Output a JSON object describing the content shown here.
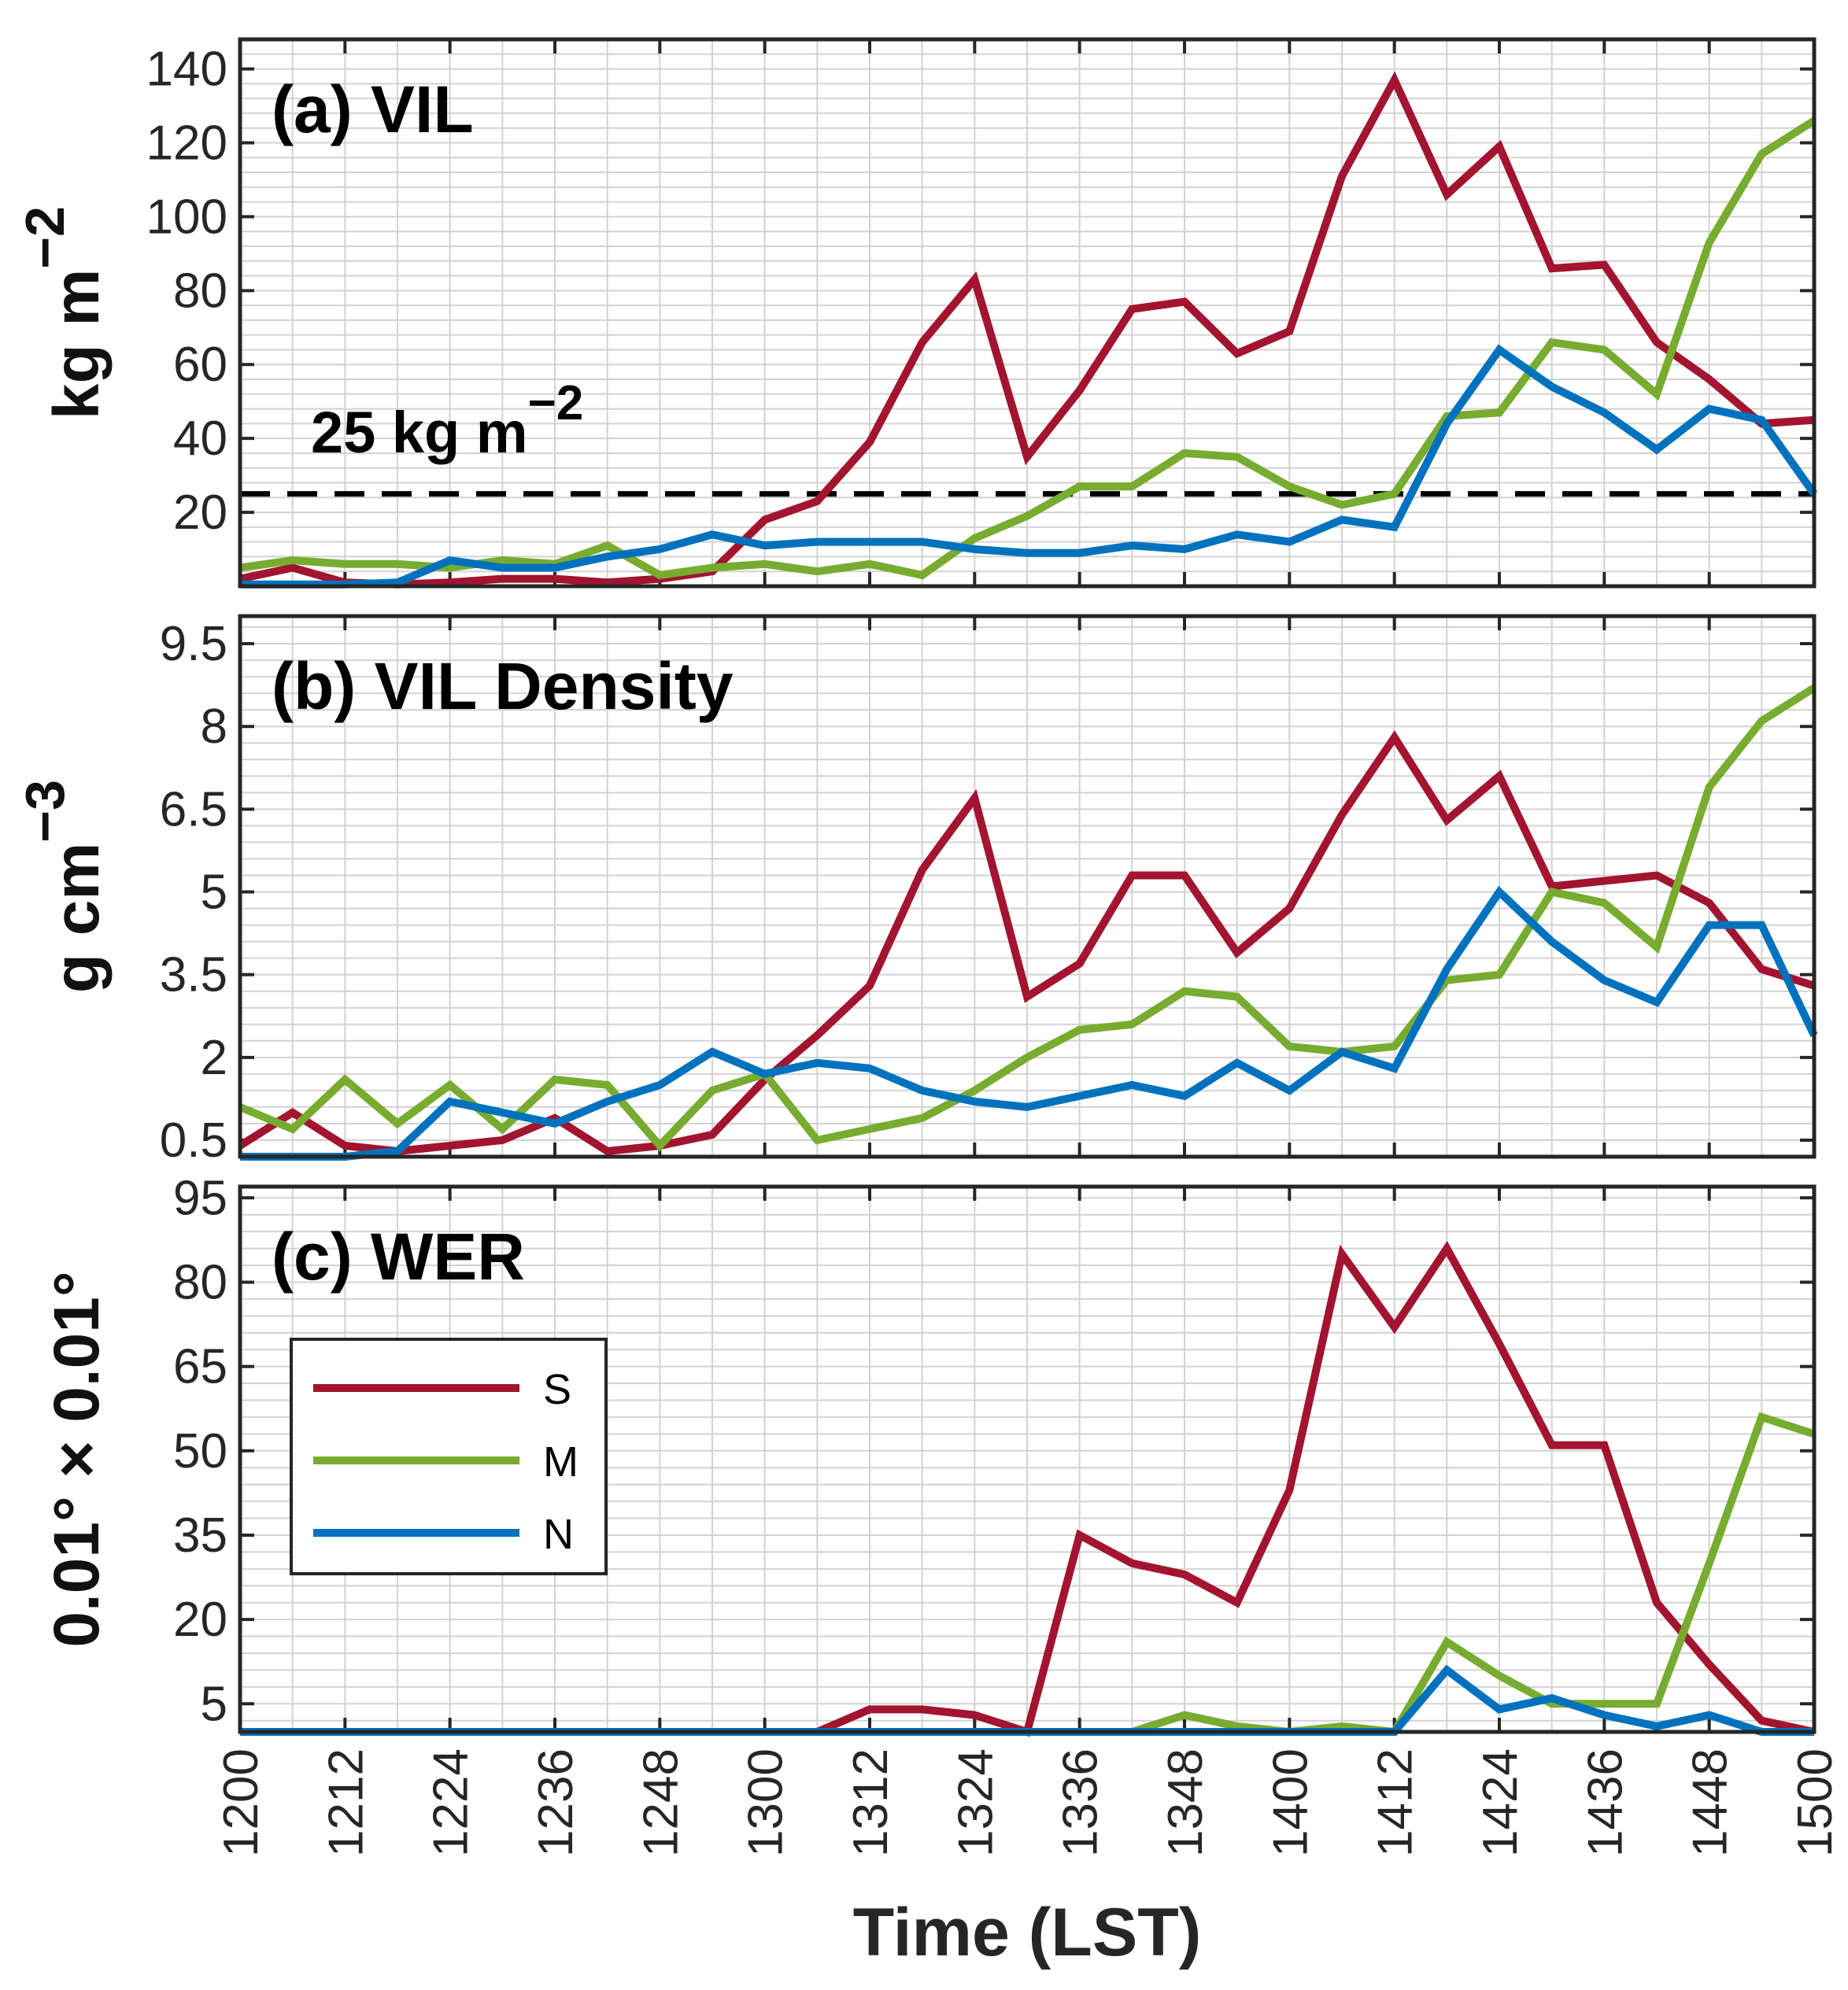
{
  "colors": {
    "S": "#A2142F",
    "M": "#77AC30",
    "N": "#0072BD",
    "grid": "#d2d2d2",
    "axis": "#262626"
  },
  "chart_data": {
    "type": "line",
    "xlabel": "Time (LST)",
    "x_ticks": [
      "1200",
      "1212",
      "1224",
      "1236",
      "1248",
      "1300",
      "1312",
      "1324",
      "1336",
      "1348",
      "1400",
      "1412",
      "1424",
      "1436",
      "1448",
      "1500"
    ],
    "x_values": [
      0,
      6,
      12,
      18,
      24,
      30,
      36,
      42,
      48,
      54,
      60,
      66,
      72,
      78,
      84,
      90,
      96,
      102,
      108,
      114,
      120,
      126,
      132,
      138,
      144,
      150,
      156,
      162,
      168,
      174,
      180
    ],
    "legend": {
      "entries": [
        "S",
        "M",
        "N"
      ],
      "placement": "lower-left of panel (c)"
    },
    "panels": [
      {
        "title": "(a) VIL",
        "ylabel": "kg m",
        "ylabel_sup": "−2",
        "yticks": [
          "20",
          "40",
          "60",
          "80",
          "100",
          "120",
          "140"
        ],
        "ylim": [
          0,
          148
        ],
        "threshold": {
          "value": 25,
          "label": "25 kg m",
          "label_sup": "−2"
        },
        "series": [
          {
            "name": "S",
            "values": [
              2,
              5,
              1,
              0.5,
              1,
              2,
              2,
              1,
              2,
              4,
              18,
              23,
              39,
              66,
              83,
              35,
              53,
              75,
              77,
              63,
              69,
              111,
              137,
              106,
              119,
              86,
              87,
              66,
              56,
              44,
              45
            ]
          },
          {
            "name": "M",
            "values": [
              5,
              7,
              6,
              6,
              5,
              7,
              6,
              11,
              3,
              5,
              6,
              4,
              6,
              3,
              13,
              19,
              27,
              27,
              36,
              35,
              27,
              22,
              25,
              46,
              47,
              66,
              64,
              52,
              93,
              117,
              126
            ]
          },
          {
            "name": "N",
            "values": [
              0.5,
              0.5,
              0.5,
              1,
              7,
              5,
              5,
              8,
              10,
              14,
              11,
              12,
              12,
              12,
              10,
              9,
              9,
              11,
              10,
              14,
              12,
              18,
              16,
              44,
              64,
              54,
              47,
              37,
              48,
              45,
              25
            ]
          }
        ]
      },
      {
        "title": "(b) VIL Density",
        "ylabel": "g cm",
        "ylabel_sup": "−3",
        "yticks": [
          "0.5",
          "2",
          "3.5",
          "5",
          "6.5",
          "8",
          "9.5"
        ],
        "ylim": [
          0.2,
          10.0
        ],
        "series": [
          {
            "name": "S",
            "values": [
              0.4,
              1.0,
              0.4,
              0.3,
              0.4,
              0.5,
              0.9,
              0.3,
              0.4,
              0.6,
              1.6,
              2.4,
              3.3,
              5.4,
              6.7,
              3.1,
              3.7,
              5.3,
              5.3,
              3.9,
              4.7,
              6.4,
              7.8,
              6.3,
              7.1,
              5.1,
              5.2,
              5.3,
              4.8,
              3.6,
              3.3
            ]
          },
          {
            "name": "M",
            "values": [
              1.1,
              0.7,
              1.6,
              0.8,
              1.5,
              0.7,
              1.6,
              1.5,
              0.4,
              1.4,
              1.7,
              0.5,
              0.7,
              0.9,
              1.4,
              2.0,
              2.5,
              2.6,
              3.2,
              3.1,
              2.2,
              2.1,
              2.2,
              3.4,
              3.5,
              5.0,
              4.8,
              4.0,
              6.9,
              8.1,
              8.7
            ]
          },
          {
            "name": "N",
            "values": [
              0.2,
              0.2,
              0.2,
              0.3,
              1.2,
              1.0,
              0.8,
              1.2,
              1.5,
              2.1,
              1.7,
              1.9,
              1.8,
              1.4,
              1.2,
              1.1,
              1.3,
              1.5,
              1.3,
              1.9,
              1.4,
              2.1,
              1.8,
              3.6,
              5.0,
              4.1,
              3.4,
              3.0,
              4.4,
              4.4,
              2.4
            ]
          }
        ]
      },
      {
        "title": "(c) WER",
        "ylabel": "0.01° × 0.01°",
        "yticks": [
          "5",
          "20",
          "35",
          "50",
          "65",
          "80",
          "95"
        ],
        "ylim": [
          0,
          97
        ],
        "series": [
          {
            "name": "S",
            "values": [
              0,
              0,
              0,
              0,
              0,
              0,
              0,
              0,
              0,
              0,
              0,
              0,
              4,
              4,
              3,
              0,
              35,
              30,
              28,
              23,
              43,
              85,
              72,
              86,
              69,
              51,
              51,
              23,
              12,
              2,
              0
            ]
          },
          {
            "name": "M",
            "values": [
              0,
              0,
              0,
              0,
              0,
              0,
              0,
              0,
              0,
              0,
              0,
              0,
              0,
              0,
              0,
              0,
              0,
              0,
              3,
              1,
              0,
              1,
              0,
              16,
              10,
              5,
              5,
              5,
              30,
              56,
              53
            ]
          },
          {
            "name": "N",
            "values": [
              0,
              0,
              0,
              0,
              0,
              0,
              0,
              0,
              0,
              0,
              0,
              0,
              0,
              0,
              0,
              0,
              0,
              0,
              0,
              0,
              0,
              0,
              0,
              11,
              4,
              6,
              3,
              1,
              3,
              0,
              0
            ]
          }
        ]
      }
    ]
  }
}
